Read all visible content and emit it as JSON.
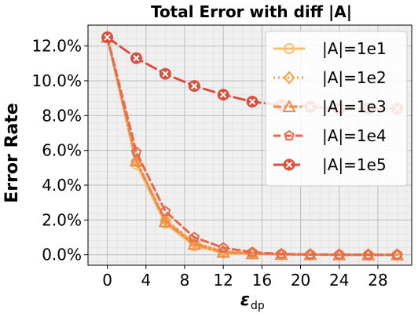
{
  "chart_data": {
    "type": "line",
    "title": "Total Error with  diff |A|",
    "xlabel_main": "ε",
    "xlabel_sub": "dp",
    "ylabel": "Error Rate",
    "x": [
      0,
      3,
      6,
      9,
      12,
      15,
      18,
      21,
      24,
      27,
      30
    ],
    "xlim": [
      -2,
      31.5
    ],
    "ylim": [
      -0.6,
      13.2
    ],
    "xticks": [
      0,
      4,
      8,
      12,
      16,
      20,
      24,
      28
    ],
    "xtick_labels": [
      "0",
      "4",
      "8",
      "12",
      "16",
      "20",
      "24",
      "28"
    ],
    "yticks": [
      0,
      2,
      4,
      6,
      8,
      10,
      12
    ],
    "ytick_labels": [
      "0.0%",
      "2.0%",
      "4.0%",
      "6.0%",
      "8.0%",
      "10.0%",
      "12.0%"
    ],
    "grid": true,
    "legend_position": "top-right",
    "series": [
      {
        "name": "|A|=1e1",
        "color": "#fdbf6f",
        "dash": "solid",
        "marker": "circle",
        "values": [
          12.5,
          5.2,
          1.8,
          0.5,
          0.1,
          0.05,
          0.02,
          0.01,
          0.0,
          0.0,
          0.0
        ]
      },
      {
        "name": "|A|=1e2",
        "color": "#f5a040",
        "dash": "dotted",
        "marker": "diamond",
        "values": [
          12.5,
          5.4,
          2.0,
          0.7,
          0.2,
          0.08,
          0.03,
          0.01,
          0.0,
          0.0,
          0.0
        ]
      },
      {
        "name": "|A|=1e3",
        "color": "#f08a4b",
        "dash": "dashdot",
        "marker": "triangle",
        "values": [
          12.5,
          5.4,
          1.9,
          0.6,
          0.15,
          0.06,
          0.02,
          0.01,
          0.0,
          0.0,
          0.0
        ]
      },
      {
        "name": "|A|=1e4",
        "color": "#e46a4e",
        "dash": "dashed",
        "marker": "pentagon",
        "values": [
          12.5,
          5.9,
          2.5,
          1.0,
          0.4,
          0.15,
          0.05,
          0.02,
          0.01,
          0.0,
          0.0
        ]
      },
      {
        "name": "|A|=1e5",
        "color": "#d8503f",
        "dash": "longdash",
        "marker": "x",
        "values": [
          12.5,
          11.3,
          10.4,
          9.7,
          9.2,
          8.8,
          8.6,
          8.5,
          8.4,
          8.4,
          8.4
        ]
      }
    ]
  }
}
